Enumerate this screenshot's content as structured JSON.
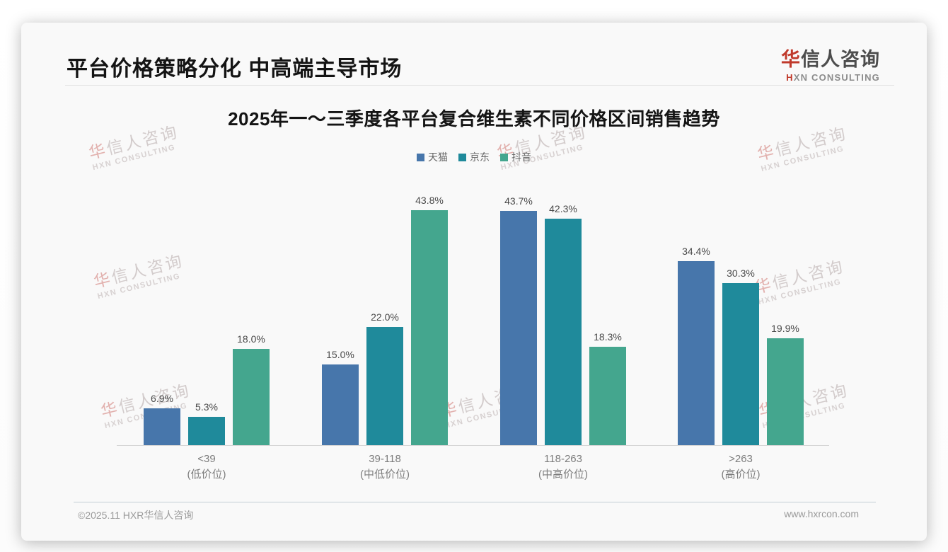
{
  "page": {
    "header": {
      "title": "平台价格策略分化 中高端主导市场"
    },
    "logo": {
      "cn_first": "华",
      "cn_rest": "信人咨询",
      "en_first": "H",
      "en_rest": "XN CONSULTING"
    },
    "watermark": {
      "cn_first": "华",
      "cn_rest": "信人咨询",
      "en": "HXN CONSULTING"
    },
    "footer": {
      "left": "©2025.11 HXR华信人咨询",
      "right": "www.hxrcon.com"
    }
  },
  "chart_data": {
    "type": "bar",
    "title": "2025年一～三季度各平台复合维生素不同价格区间销售趋势",
    "categories": [
      "<39",
      "39-118",
      "118-263",
      ">263"
    ],
    "category_sublabels": [
      "(低价位)",
      "(中低价位)",
      "(中高价位)",
      "(高价位)"
    ],
    "series": [
      {
        "name": "天猫",
        "color": "#4776AB",
        "values": [
          6.9,
          15.0,
          43.7,
          34.4
        ]
      },
      {
        "name": "京东",
        "color": "#1F8A9B",
        "values": [
          5.3,
          22.0,
          42.3,
          30.3
        ]
      },
      {
        "name": "抖音",
        "color": "#44A68E",
        "values": [
          18.0,
          43.8,
          18.3,
          19.9
        ]
      }
    ],
    "value_suffix": "%",
    "ylim": [
      0,
      48
    ],
    "grid": false,
    "legend_position": "top",
    "xlabel": "",
    "ylabel": ""
  }
}
